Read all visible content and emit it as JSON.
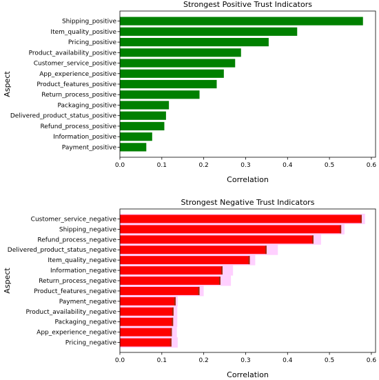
{
  "colors": {
    "positive_bar": "#008000",
    "negative_bar": "#ff0000",
    "negative_glow": "#ffc8ff",
    "negative_inner": "#a02a10",
    "axis": "#000000"
  },
  "chart_data": [
    {
      "type": "bar",
      "orientation": "horizontal",
      "title": "Strongest Positive Trust Indicators",
      "xlabel": "Correlation",
      "ylabel": "Aspect",
      "xlim": [
        0,
        0.61
      ],
      "xticks": [
        0.0,
        0.1,
        0.2,
        0.3,
        0.4,
        0.5,
        0.6
      ],
      "xtick_labels": [
        "0.0",
        "0.1",
        "0.2",
        "0.3",
        "0.4",
        "0.5",
        "0.6"
      ],
      "grid": false,
      "categories": [
        "Shipping_positive",
        "Item_quality_positive",
        "Pricing_positive",
        "Product_availability_positive",
        "Customer_service_positive",
        "App_experience_positive",
        "Product_features_positive",
        "Return_process_positive",
        "Packaging_positive",
        "Delivered_product_status_positive",
        "Refund_process_positive",
        "Information_positive",
        "Payment_positive"
      ],
      "values": [
        0.58,
        0.423,
        0.355,
        0.289,
        0.275,
        0.248,
        0.231,
        0.19,
        0.117,
        0.11,
        0.106,
        0.077,
        0.063
      ]
    },
    {
      "type": "bar",
      "orientation": "horizontal",
      "title": "Strongest Negative Trust Indicators",
      "xlabel": "Correlation",
      "ylabel": "Aspect",
      "xlim": [
        0,
        0.61
      ],
      "xticks": [
        0.0,
        0.1,
        0.2,
        0.3,
        0.4,
        0.5,
        0.6
      ],
      "xtick_labels": [
        "0.0",
        "0.1",
        "0.2",
        "0.3",
        "0.4",
        "0.5",
        "0.6"
      ],
      "grid": false,
      "categories": [
        "Customer_service_negative",
        "Shipping_negative",
        "Refund_process_negative",
        "Delivered_product_status_negative",
        "Item_quality_negative",
        "Information_negative",
        "Return_process_negative",
        "Product_features_negative",
        "Payment_negative",
        "Product_availability_negative",
        "Packaging_negative",
        "App_experience_negative",
        "Pricing_negative"
      ],
      "values": [
        0.577,
        0.528,
        0.462,
        0.35,
        0.31,
        0.245,
        0.24,
        0.19,
        0.133,
        0.128,
        0.127,
        0.124,
        0.123
      ],
      "overlay_values": [
        0.577,
        0.528,
        0.462,
        0.35,
        0.31,
        0.245,
        0.24,
        0.19,
        0.133,
        0.128,
        0.127,
        0.124,
        0.123
      ],
      "glow_values": [
        0.58,
        0.531,
        0.475,
        0.372,
        0.318,
        0.265,
        0.26,
        0.195,
        0.133,
        0.132,
        0.132,
        0.131,
        0.133
      ]
    }
  ]
}
